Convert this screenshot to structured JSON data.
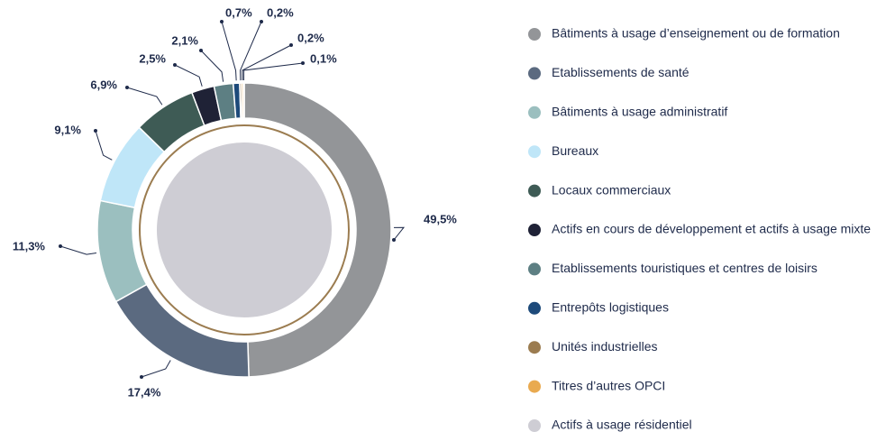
{
  "chart_data": {
    "type": "donut",
    "categories": [
      "Bâtiments à usage d’enseignement ou de formation",
      "Etablissements de santé",
      "Bâtiments à usage administratif",
      "Bureaux",
      "Locaux commerciaux",
      "Actifs en cours de développement et actifs à usage mixte",
      "Etablissements touristiques et centres de loisirs",
      "Entrepôts logistiques",
      "Unités industrielles",
      "Titres d’autres OPCI",
      "Actifs à usage résidentiel"
    ],
    "values": [
      49.5,
      17.4,
      11.3,
      9.1,
      6.9,
      2.5,
      2.1,
      0.7,
      0.2,
      0.2,
      0.1
    ],
    "value_labels": [
      "49,5%",
      "17,4%",
      "11,3%",
      "9,1%",
      "6,9%",
      "2,5%",
      "2,1%",
      "0,7%",
      "0,2%",
      "0,2%",
      "0,1%"
    ],
    "colors": [
      "#939598",
      "#5b6a80",
      "#9bbfbf",
      "#bfe6f8",
      "#3e5b55",
      "#1f2236",
      "#5d7f83",
      "#1d4a7a",
      "#9b7c50",
      "#e9aa50",
      "#cecdd4"
    ],
    "legend": "right"
  }
}
